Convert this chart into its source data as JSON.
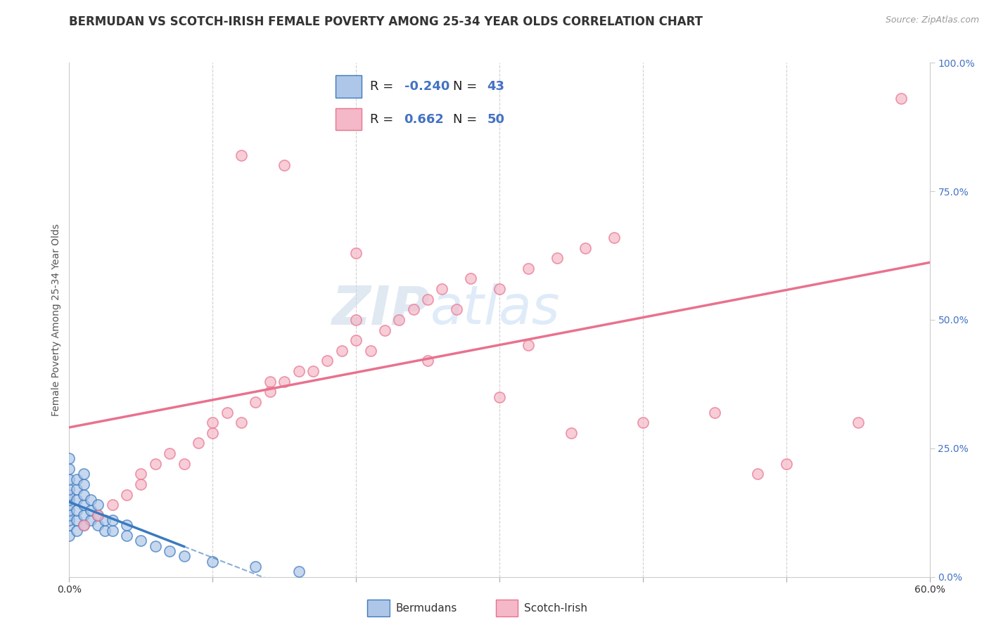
{
  "title": "BERMUDAN VS SCOTCH-IRISH FEMALE POVERTY AMONG 25-34 YEAR OLDS CORRELATION CHART",
  "source": "Source: ZipAtlas.com",
  "ylabel": "Female Poverty Among 25-34 Year Olds",
  "xlim": [
    0.0,
    0.6
  ],
  "ylim": [
    0.0,
    1.0
  ],
  "xticks": [
    0.0,
    0.1,
    0.2,
    0.3,
    0.4,
    0.5,
    0.6
  ],
  "yticks_right": [
    0.0,
    0.25,
    0.5,
    0.75,
    1.0
  ],
  "bermuda_color": "#aec6e8",
  "bermuda_edge": "#3a7abf",
  "scotch_color": "#f4b8c8",
  "scotch_edge": "#e8728e",
  "line_bermuda_color": "#3a7abf",
  "line_scotch_color": "#e8728e",
  "watermark_zip": "ZIP",
  "watermark_atlas": "atlas",
  "legend_R_bermuda": "-0.240",
  "legend_N_bermuda": "43",
  "legend_R_scotch": "0.662",
  "legend_N_scotch": "50",
  "bermuda_scatter_x": [
    0.0,
    0.0,
    0.0,
    0.0,
    0.0,
    0.0,
    0.0,
    0.0,
    0.0,
    0.0,
    0.0,
    0.0,
    0.005,
    0.005,
    0.005,
    0.005,
    0.005,
    0.005,
    0.01,
    0.01,
    0.01,
    0.01,
    0.01,
    0.01,
    0.015,
    0.015,
    0.015,
    0.02,
    0.02,
    0.02,
    0.025,
    0.025,
    0.03,
    0.03,
    0.04,
    0.04,
    0.05,
    0.06,
    0.07,
    0.08,
    0.1,
    0.13,
    0.16
  ],
  "bermuda_scatter_y": [
    0.08,
    0.1,
    0.11,
    0.12,
    0.13,
    0.14,
    0.15,
    0.16,
    0.17,
    0.19,
    0.21,
    0.23,
    0.09,
    0.11,
    0.13,
    0.15,
    0.17,
    0.19,
    0.1,
    0.12,
    0.14,
    0.16,
    0.18,
    0.2,
    0.11,
    0.13,
    0.15,
    0.1,
    0.12,
    0.14,
    0.09,
    0.11,
    0.09,
    0.11,
    0.08,
    0.1,
    0.07,
    0.06,
    0.05,
    0.04,
    0.03,
    0.02,
    0.01
  ],
  "scotch_scatter_x": [
    0.01,
    0.02,
    0.03,
    0.04,
    0.05,
    0.05,
    0.06,
    0.07,
    0.08,
    0.09,
    0.1,
    0.1,
    0.11,
    0.12,
    0.13,
    0.14,
    0.14,
    0.15,
    0.16,
    0.17,
    0.18,
    0.19,
    0.2,
    0.21,
    0.22,
    0.23,
    0.24,
    0.25,
    0.26,
    0.27,
    0.28,
    0.3,
    0.32,
    0.34,
    0.36,
    0.38,
    0.2,
    0.25,
    0.15,
    0.3,
    0.35,
    0.4,
    0.45,
    0.5,
    0.55,
    0.58,
    0.2,
    0.12,
    0.48,
    0.32
  ],
  "scotch_scatter_y": [
    0.1,
    0.12,
    0.14,
    0.16,
    0.18,
    0.2,
    0.22,
    0.24,
    0.22,
    0.26,
    0.28,
    0.3,
    0.32,
    0.3,
    0.34,
    0.36,
    0.38,
    0.38,
    0.4,
    0.4,
    0.42,
    0.44,
    0.46,
    0.44,
    0.48,
    0.5,
    0.52,
    0.54,
    0.56,
    0.52,
    0.58,
    0.56,
    0.6,
    0.62,
    0.64,
    0.66,
    0.63,
    0.42,
    0.8,
    0.35,
    0.28,
    0.3,
    0.32,
    0.22,
    0.3,
    0.93,
    0.5,
    0.82,
    0.2,
    0.45
  ],
  "background_color": "#ffffff",
  "grid_color": "#cccccc",
  "title_fontsize": 12,
  "axis_label_fontsize": 10,
  "tick_fontsize": 10
}
